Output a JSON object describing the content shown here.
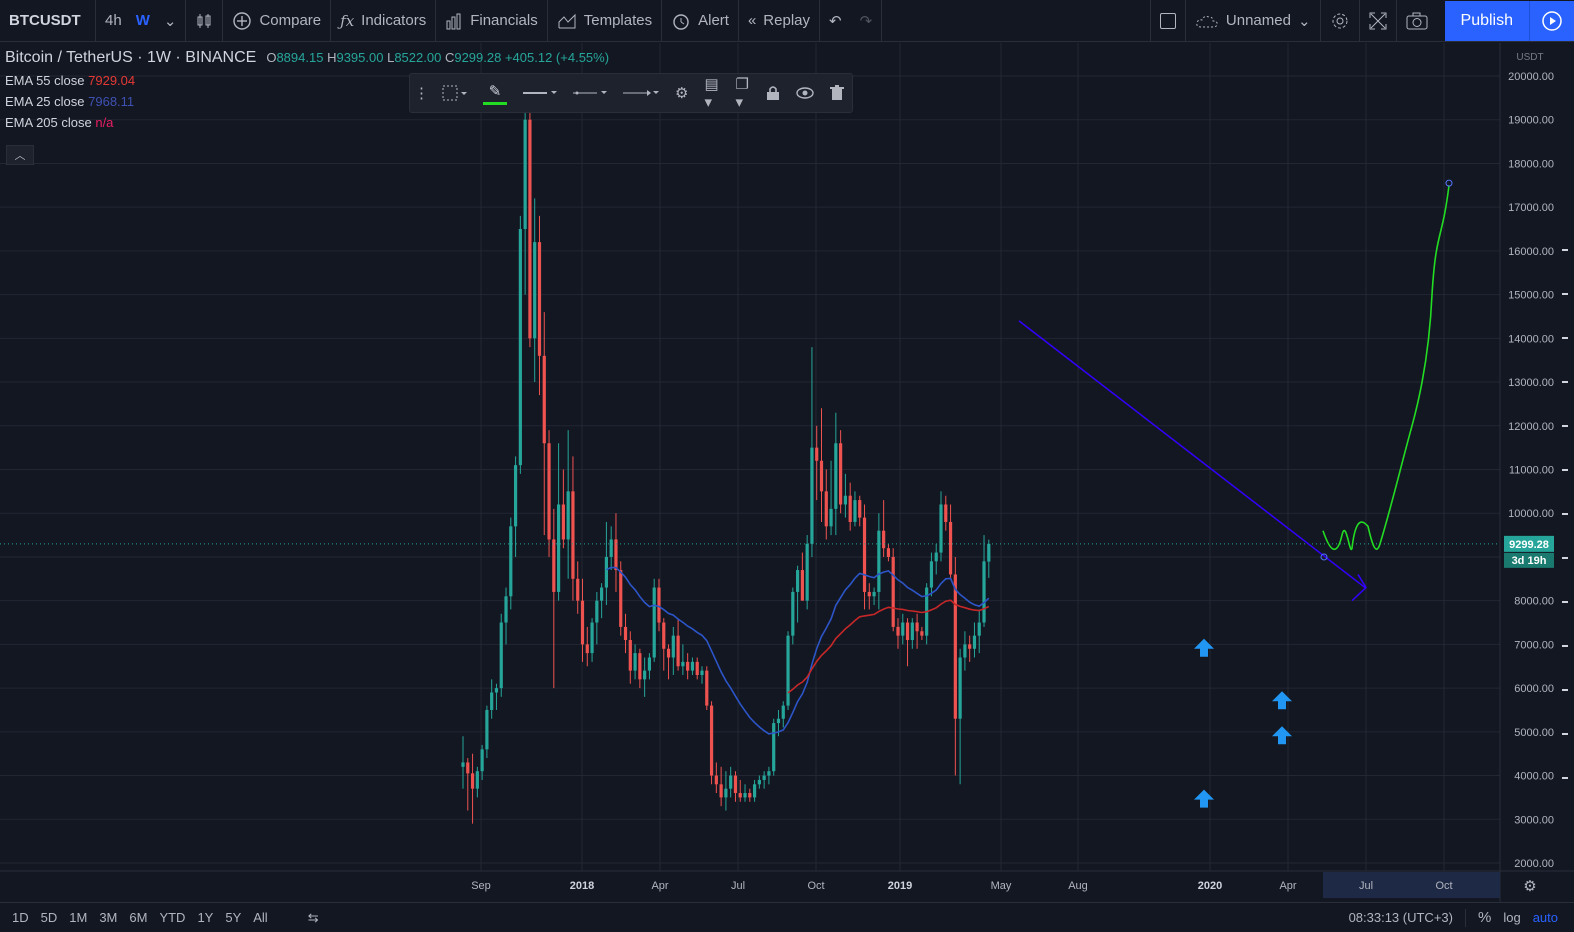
{
  "toolbar": {
    "symbol": "BTCUSDT",
    "intervals": [
      "4h",
      "W"
    ],
    "compare_label": "Compare",
    "indicators_label": "Indicators",
    "financials_label": "Financials",
    "templates_label": "Templates",
    "alert_label": "Alert",
    "replay_label": "Replay",
    "layout_name": "Unnamed",
    "publish_label": "Publish"
  },
  "legend": {
    "title": "Bitcoin / TetherUS · 1W · BINANCE",
    "open_k": "O",
    "open": "8894.15",
    "high_k": "H",
    "high": "9395.00",
    "low_k": "L",
    "low": "8522.00",
    "close_k": "C",
    "close": "9299.28",
    "change": "+405.12 (+4.55%)",
    "ema": [
      {
        "label": "EMA 55 close",
        "value": "7929.04",
        "color": "#e53935"
      },
      {
        "label": "EMA 25 close",
        "value": "7968.11",
        "color": "#3f51b5"
      },
      {
        "label": "EMA 205 close",
        "value": "n/a",
        "color": "#e91e63"
      }
    ]
  },
  "price_axis": {
    "currency": "USDT",
    "ticks": [
      "20000.00",
      "19000.00",
      "18000.00",
      "17000.00",
      "16000.00",
      "15000.00",
      "14000.00",
      "13000.00",
      "12000.00",
      "11000.00",
      "10000.00",
      "9000.00",
      "8000.00",
      "7000.00",
      "6000.00",
      "5000.00",
      "4000.00",
      "3000.00",
      "2000.00"
    ],
    "last_price": "9299.28",
    "countdown": "3d 19h"
  },
  "time_axis": {
    "labels": [
      "Sep",
      "2018",
      "Apr",
      "Jul",
      "Oct",
      "2019",
      "May",
      "Aug",
      "2020",
      "Apr",
      "Jul",
      "Oct"
    ]
  },
  "bottom": {
    "ranges": [
      "1D",
      "5D",
      "1M",
      "3M",
      "6M",
      "YTD",
      "1Y",
      "5Y",
      "All"
    ],
    "time": "08:33:13 (UTC+3)",
    "percent": "%",
    "log": "log",
    "auto": "auto"
  },
  "colors": {
    "up": "#26a69a",
    "down": "#ef5350",
    "ema25": "#2962ff",
    "ema55": "#e53935",
    "trendline": "#3300ff",
    "projection": "#22dd22",
    "arrow": "#2196f3",
    "accent": "#2962ff"
  },
  "chart_data": {
    "type": "candlestick",
    "symbol": "BTCUSDT",
    "interval": "1W",
    "ylim": [
      2000,
      20000
    ],
    "x_labels": [
      "Sep",
      "2018",
      "Apr",
      "Jul",
      "Oct",
      "2019",
      "May",
      "Aug",
      "2020",
      "Apr",
      "Jul",
      "Oct"
    ],
    "last": {
      "open": 8894.15,
      "high": 9395.0,
      "low": 8522.0,
      "close": 9299.28
    },
    "candles_ohlc": [
      [
        4200,
        4900,
        3700,
        4300
      ],
      [
        4300,
        4400,
        3200,
        4050
      ],
      [
        4050,
        4500,
        2900,
        3700
      ],
      [
        3700,
        4200,
        3500,
        4100
      ],
      [
        4100,
        4700,
        3900,
        4600
      ],
      [
        4600,
        5600,
        4400,
        5500
      ],
      [
        5500,
        6200,
        5300,
        5900
      ],
      [
        5900,
        6100,
        5500,
        6000
      ],
      [
        6000,
        7700,
        5800,
        7500
      ],
      [
        7500,
        8300,
        7000,
        8100
      ],
      [
        8100,
        9900,
        7800,
        9700
      ],
      [
        9700,
        11300,
        9000,
        11100
      ],
      [
        11100,
        16800,
        10900,
        16500
      ],
      [
        16500,
        19800,
        15000,
        19000
      ],
      [
        19000,
        19300,
        13800,
        14000
      ],
      [
        14000,
        17200,
        13000,
        16200
      ],
      [
        16200,
        16800,
        12700,
        13600
      ],
      [
        13600,
        14600,
        9500,
        11600
      ],
      [
        11600,
        11900,
        9000,
        9400
      ],
      [
        9400,
        10100,
        6000,
        8200
      ],
      [
        8200,
        11600,
        8000,
        10200
      ],
      [
        10200,
        11000,
        9200,
        9400
      ],
      [
        9400,
        11900,
        8500,
        10500
      ],
      [
        10500,
        11300,
        8000,
        8500
      ],
      [
        8500,
        8900,
        7700,
        8000
      ],
      [
        8000,
        8500,
        6600,
        7000
      ],
      [
        7000,
        7400,
        6500,
        6800
      ],
      [
        6800,
        7600,
        6600,
        7500
      ],
      [
        7500,
        8200,
        7000,
        8000
      ],
      [
        8000,
        8400,
        7600,
        8300
      ],
      [
        8300,
        9800,
        7900,
        9000
      ],
      [
        9000,
        9700,
        8700,
        9400
      ],
      [
        9400,
        10000,
        8200,
        8700
      ],
      [
        8700,
        8900,
        7200,
        7400
      ],
      [
        7400,
        7700,
        6800,
        7100
      ],
      [
        7100,
        7300,
        6100,
        6400
      ],
      [
        6400,
        7000,
        6200,
        6800
      ],
      [
        6800,
        6900,
        6000,
        6200
      ],
      [
        6200,
        6700,
        5800,
        6400
      ],
      [
        6400,
        6800,
        6200,
        6700
      ],
      [
        6700,
        8500,
        6600,
        8300
      ],
      [
        8300,
        8500,
        7300,
        7500
      ],
      [
        7500,
        7600,
        6400,
        6900
      ],
      [
        6900,
        7000,
        6200,
        6700
      ],
      [
        6700,
        7400,
        6300,
        7200
      ],
      [
        7200,
        7600,
        6400,
        6500
      ],
      [
        6500,
        7000,
        6300,
        6600
      ],
      [
        6600,
        6800,
        6200,
        6400
      ],
      [
        6400,
        6700,
        6300,
        6600
      ],
      [
        6600,
        6700,
        6200,
        6300
      ],
      [
        6300,
        6500,
        6100,
        6400
      ],
      [
        6400,
        6500,
        5500,
        5600
      ],
      [
        5600,
        5700,
        3800,
        4000
      ],
      [
        4000,
        4300,
        3600,
        3800
      ],
      [
        3800,
        4200,
        3300,
        3500
      ],
      [
        3500,
        4100,
        3200,
        3700
      ],
      [
        3700,
        4200,
        3500,
        4000
      ],
      [
        4000,
        4100,
        3400,
        3600
      ],
      [
        3600,
        3900,
        3400,
        3500
      ],
      [
        3500,
        3800,
        3400,
        3600
      ],
      [
        3600,
        3700,
        3400,
        3500
      ],
      [
        3500,
        3900,
        3400,
        3800
      ],
      [
        3800,
        4000,
        3700,
        3900
      ],
      [
        3900,
        4100,
        3700,
        4000
      ],
      [
        4000,
        4200,
        3800,
        4100
      ],
      [
        4100,
        5300,
        4000,
        5200
      ],
      [
        5200,
        5500,
        4900,
        5300
      ],
      [
        5300,
        5700,
        5100,
        5600
      ],
      [
        5600,
        7300,
        5500,
        7200
      ],
      [
        7200,
        8300,
        7000,
        8200
      ],
      [
        8200,
        8800,
        7500,
        8700
      ],
      [
        8700,
        9100,
        8000,
        8000
      ],
      [
        8000,
        9500,
        7800,
        9300
      ],
      [
        9300,
        13800,
        9000,
        11500
      ],
      [
        11500,
        12000,
        10300,
        11200
      ],
      [
        11200,
        12400,
        9800,
        10500
      ],
      [
        10500,
        11000,
        9400,
        9700
      ],
      [
        9700,
        11200,
        9500,
        10100
      ],
      [
        10100,
        12300,
        9500,
        11600
      ],
      [
        11600,
        11900,
        10000,
        10200
      ],
      [
        10200,
        10900,
        9900,
        10400
      ],
      [
        10400,
        10700,
        9600,
        9800
      ],
      [
        9800,
        10500,
        9700,
        10300
      ],
      [
        10300,
        10400,
        9700,
        9900
      ],
      [
        9900,
        10200,
        7800,
        8200
      ],
      [
        8200,
        8400,
        7800,
        8100
      ],
      [
        8100,
        8300,
        7900,
        8200
      ],
      [
        8200,
        10000,
        7800,
        9600
      ],
      [
        9600,
        10300,
        9000,
        9200
      ],
      [
        9200,
        9300,
        8900,
        9000
      ],
      [
        9000,
        9200,
        7300,
        7400
      ],
      [
        7400,
        7600,
        6900,
        7200
      ],
      [
        7200,
        7700,
        7000,
        7500
      ],
      [
        7500,
        7600,
        6500,
        7100
      ],
      [
        7100,
        7600,
        6900,
        7500
      ],
      [
        7500,
        7700,
        6900,
        7300
      ],
      [
        7300,
        7400,
        7100,
        7200
      ],
      [
        7200,
        8400,
        7000,
        8300
      ],
      [
        8300,
        9100,
        8100,
        8900
      ],
      [
        8900,
        9300,
        8600,
        9100
      ],
      [
        9100,
        10500,
        8900,
        10200
      ],
      [
        10200,
        10400,
        9600,
        9800
      ],
      [
        9800,
        10200,
        8500,
        8600
      ],
      [
        8600,
        9000,
        4000,
        5300
      ],
      [
        5300,
        6900,
        3800,
        6700
      ],
      [
        6700,
        7300,
        6400,
        7000
      ],
      [
        7000,
        7200,
        6600,
        6900
      ],
      [
        6900,
        7500,
        6700,
        7200
      ],
      [
        7200,
        7800,
        6800,
        7500
      ],
      [
        7500,
        9500,
        7400,
        8900
      ],
      [
        8894.15,
        9395,
        8522,
        9299.28
      ]
    ],
    "annotations": [
      "Descending trendline from ~14000 (Jun 2019) to ~8300 (Jun 2020)",
      "Projected path to ~17500 by Oct 2020",
      "Blue up arrows at 2020 lows"
    ]
  }
}
